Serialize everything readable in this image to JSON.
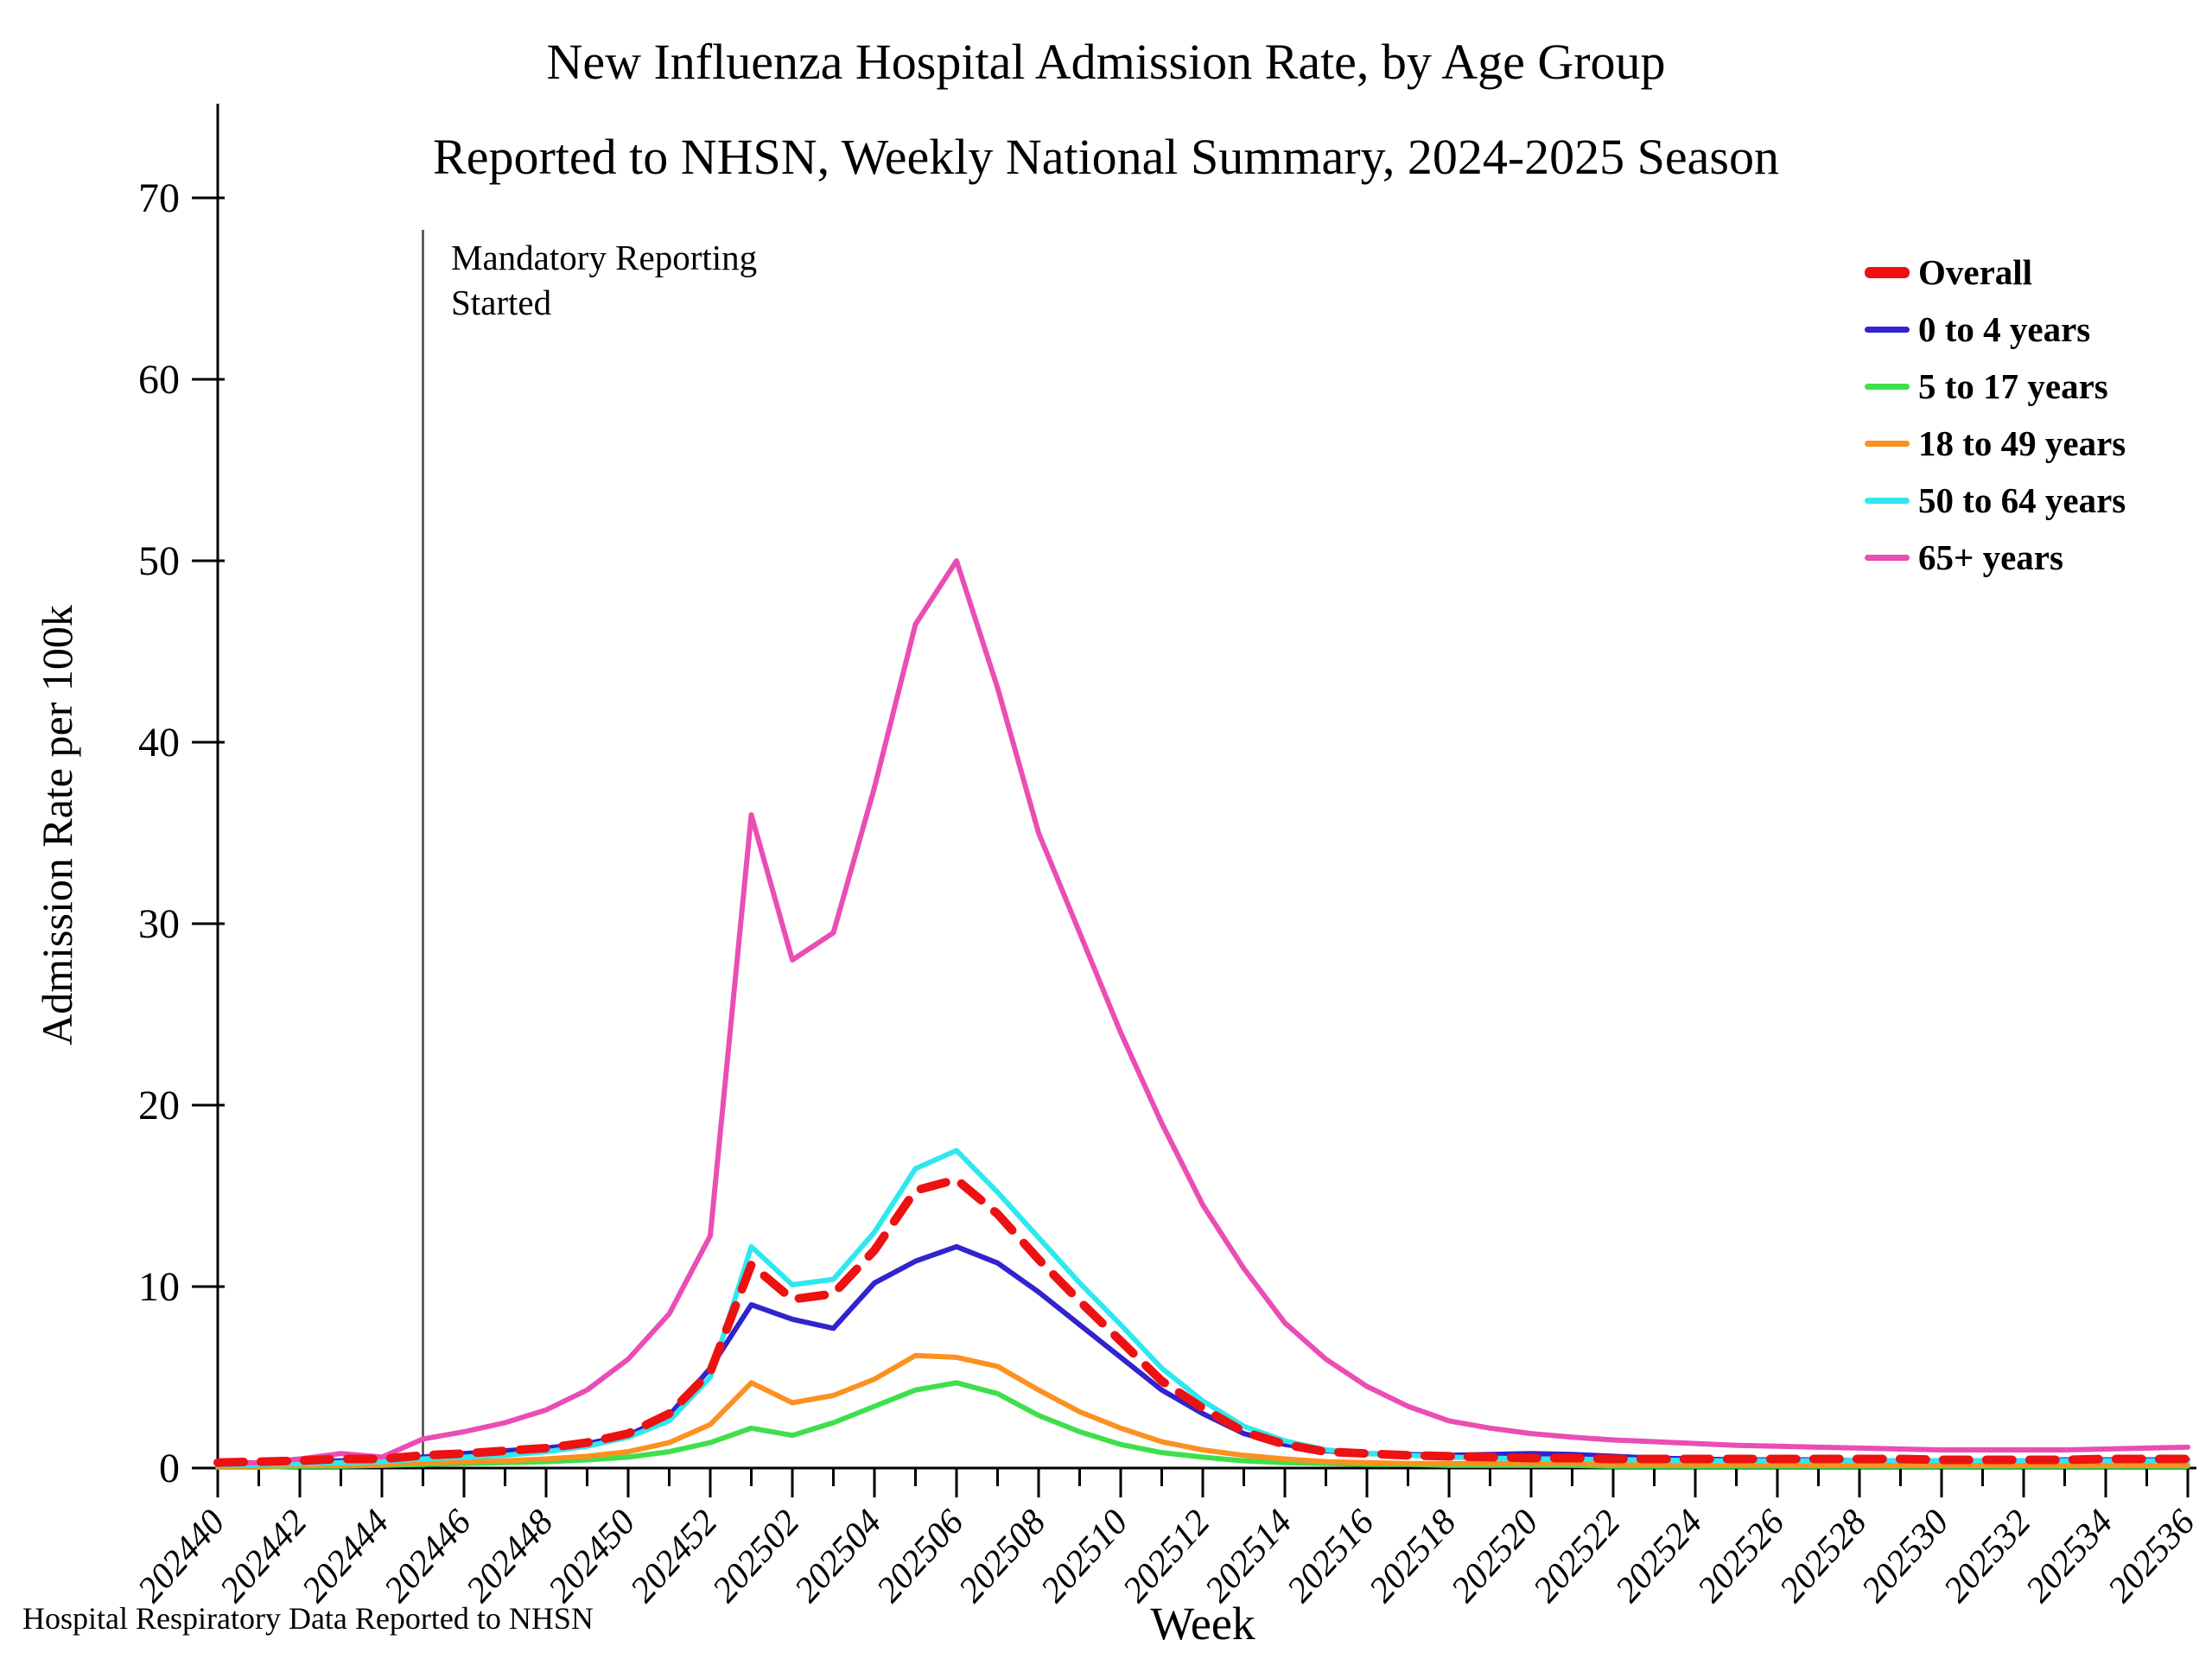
{
  "figure": {
    "background": "#ffffff",
    "axis_color": "#000000"
  },
  "chart_data": {
    "type": "line",
    "title": "New Influenza Hospital Admission Rate, by Age Group",
    "subtitle": "Reported to NHSN, Weekly National Summary, 2024-2025 Season",
    "xlabel": "Week",
    "ylabel": "Admission Rate per 100k",
    "ylim": [
      0,
      70
    ],
    "y_ticks": [
      0,
      10,
      20,
      30,
      40,
      50,
      60,
      70
    ],
    "grid": false,
    "legend_position": "upper right",
    "x": [
      "202440",
      "202441",
      "202442",
      "202443",
      "202444",
      "202445",
      "202446",
      "202447",
      "202448",
      "202449",
      "202450",
      "202451",
      "202452",
      "202501",
      "202502",
      "202503",
      "202504",
      "202505",
      "202506",
      "202507",
      "202508",
      "202509",
      "202510",
      "202511",
      "202512",
      "202513",
      "202514",
      "202515",
      "202516",
      "202517",
      "202518",
      "202519",
      "202520",
      "202521",
      "202522",
      "202523",
      "202524",
      "202525",
      "202526",
      "202527",
      "202528",
      "202529",
      "202530",
      "202531",
      "202532",
      "202533",
      "202534",
      "202535",
      "202536"
    ],
    "x_major_ticks": [
      "202440",
      "202442",
      "202444",
      "202446",
      "202448",
      "202450",
      "202452",
      "202502",
      "202504",
      "202506",
      "202508",
      "202510",
      "202512",
      "202514",
      "202516",
      "202518",
      "202520",
      "202522",
      "202524",
      "202526",
      "202528",
      "202530",
      "202532",
      "202534",
      "202536"
    ],
    "series": [
      {
        "name": "5 to 17 years",
        "color": "#3fdf4c",
        "width": 6,
        "dashed": false,
        "values": [
          0.05,
          0.05,
          0.1,
          0.1,
          0.15,
          0.2,
          0.25,
          0.3,
          0.35,
          0.45,
          0.6,
          0.9,
          1.4,
          2.2,
          1.8,
          2.5,
          3.4,
          4.3,
          4.7,
          4.1,
          2.9,
          2.0,
          1.3,
          0.85,
          0.6,
          0.4,
          0.3,
          0.25,
          0.2,
          0.2,
          0.15,
          0.15,
          0.15,
          0.15,
          0.1,
          0.1,
          0.1,
          0.1,
          0.1,
          0.1,
          0.1,
          0.1,
          0.1,
          0.1,
          0.1,
          0.1,
          0.1,
          0.1,
          0.1
        ]
      },
      {
        "name": "18 to 49 years",
        "color": "#fb9120",
        "width": 6,
        "dashed": false,
        "values": [
          0.1,
          0.1,
          0.15,
          0.15,
          0.2,
          0.3,
          0.35,
          0.4,
          0.5,
          0.65,
          0.9,
          1.4,
          2.4,
          4.7,
          3.6,
          4.0,
          4.9,
          6.2,
          6.1,
          5.6,
          4.3,
          3.1,
          2.2,
          1.45,
          1.0,
          0.7,
          0.5,
          0.35,
          0.3,
          0.25,
          0.25,
          0.25,
          0.25,
          0.25,
          0.2,
          0.2,
          0.2,
          0.2,
          0.2,
          0.18,
          0.18,
          0.15,
          0.15,
          0.15,
          0.15,
          0.15,
          0.15,
          0.15,
          0.15
        ]
      },
      {
        "name": "0 to 4 years",
        "color": "#3123cd",
        "width": 6,
        "dashed": false,
        "values": [
          0.25,
          0.3,
          0.35,
          0.4,
          0.45,
          0.6,
          0.8,
          0.95,
          1.1,
          1.35,
          1.8,
          2.9,
          5.5,
          9.0,
          8.2,
          7.7,
          10.2,
          11.4,
          12.2,
          11.3,
          9.7,
          7.9,
          6.1,
          4.3,
          3.0,
          1.9,
          1.3,
          0.95,
          0.8,
          0.75,
          0.7,
          0.75,
          0.8,
          0.75,
          0.65,
          0.55,
          0.5,
          0.45,
          0.45,
          0.45,
          0.4,
          0.4,
          0.4,
          0.4,
          0.4,
          0.45,
          0.45,
          0.45,
          0.45
        ]
      },
      {
        "name": "50 to 64 years",
        "color": "#2fe8ef",
        "width": 6,
        "dashed": false,
        "values": [
          0.15,
          0.2,
          0.25,
          0.3,
          0.35,
          0.5,
          0.6,
          0.7,
          0.9,
          1.2,
          1.7,
          2.6,
          5.0,
          12.2,
          10.1,
          10.4,
          13.0,
          16.5,
          17.5,
          15.2,
          12.7,
          10.2,
          7.9,
          5.5,
          3.7,
          2.3,
          1.5,
          1.0,
          0.8,
          0.7,
          0.6,
          0.55,
          0.5,
          0.5,
          0.45,
          0.45,
          0.4,
          0.4,
          0.4,
          0.4,
          0.4,
          0.4,
          0.4,
          0.4,
          0.4,
          0.4,
          0.4,
          0.4,
          0.4
        ]
      },
      {
        "name": "65+ years",
        "color": "#ea4db5",
        "width": 6,
        "dashed": false,
        "values": [
          0.2,
          0.3,
          0.5,
          0.8,
          0.6,
          1.6,
          2.0,
          2.5,
          3.2,
          4.3,
          6.0,
          8.5,
          12.8,
          36.0,
          28.0,
          29.5,
          37.5,
          46.5,
          50.0,
          43.0,
          35.0,
          29.5,
          24.0,
          19.0,
          14.5,
          11.0,
          8.0,
          6.0,
          4.5,
          3.4,
          2.6,
          2.2,
          1.9,
          1.7,
          1.55,
          1.45,
          1.35,
          1.25,
          1.2,
          1.15,
          1.1,
          1.05,
          1.0,
          1.0,
          1.0,
          1.0,
          1.05,
          1.1,
          1.15
        ]
      },
      {
        "name": "Overall",
        "color": "#ed1111",
        "width": 10,
        "dashed": true,
        "values": [
          0.3,
          0.35,
          0.4,
          0.5,
          0.5,
          0.7,
          0.8,
          0.95,
          1.1,
          1.4,
          1.9,
          3.0,
          5.3,
          11.2,
          9.3,
          9.6,
          12.0,
          15.3,
          15.9,
          14.0,
          11.5,
          9.2,
          7.0,
          4.8,
          3.3,
          2.0,
          1.3,
          0.9,
          0.8,
          0.7,
          0.65,
          0.6,
          0.55,
          0.55,
          0.5,
          0.5,
          0.5,
          0.5,
          0.5,
          0.5,
          0.5,
          0.5,
          0.45,
          0.45,
          0.45,
          0.45,
          0.5,
          0.5,
          0.5
        ]
      }
    ],
    "legend_order": [
      "Overall",
      "0 to 4 years",
      "5 to 17 years",
      "18 to 49 years",
      "50 to 64 years",
      "65+ years"
    ]
  },
  "annotation": {
    "line1": "Mandatory Reporting",
    "line2": "Started",
    "week": "202445",
    "line_color": "#444444"
  },
  "footer": {
    "text": "Hospital Respiratory Data Reported to NHSN"
  }
}
